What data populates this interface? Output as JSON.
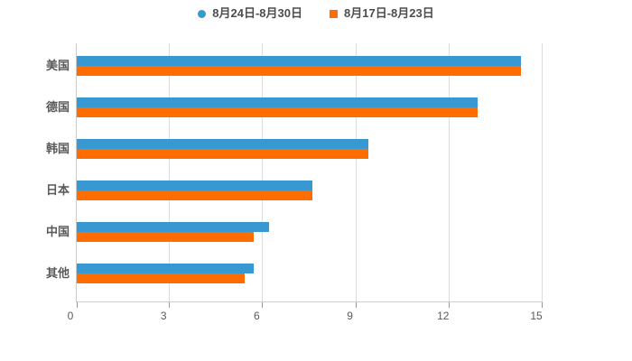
{
  "legend": [
    {
      "label": "8月24日-8月30日",
      "color": "#3899d2",
      "marker": "circle"
    },
    {
      "label": "8月17日-8月23日",
      "color": "#ff6d00",
      "marker": "square"
    }
  ],
  "chart_data": {
    "type": "bar",
    "orientation": "horizontal",
    "title": "",
    "xlabel": "",
    "ylabel": "",
    "categories": [
      "美国",
      "德国",
      "韩国",
      "日本",
      "中国",
      "其他"
    ],
    "series": [
      {
        "name": "8月24日-8月30日",
        "color": "#3899d2",
        "values": [
          14.3,
          12.9,
          9.4,
          7.6,
          6.2,
          5.7
        ]
      },
      {
        "name": "8月17日-8月23日",
        "color": "#ff6d00",
        "values": [
          14.3,
          12.9,
          9.4,
          7.6,
          5.7,
          5.4
        ]
      }
    ],
    "xlim": [
      0,
      15
    ],
    "xticks": [
      0,
      3,
      6,
      9,
      12,
      15
    ],
    "grid": true,
    "legend_position": "top",
    "colors": {
      "gridline": "#dddddd",
      "axis_line": "#cccccc",
      "tick": "#999999",
      "tick_label": "#595959",
      "category_label": "#595959",
      "legend_label": "#4d4d4d",
      "background": "#ffffff"
    }
  }
}
